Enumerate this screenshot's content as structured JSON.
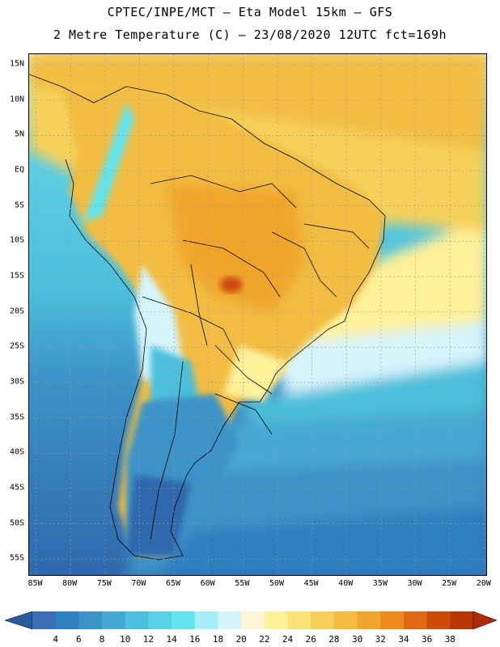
{
  "header": {
    "line1": "CPTEC/INPE/MCT –  Eta Model 15km – GFS",
    "line2": "2 Metre Temperature (C) – 23/08/2020 12UTC fct=169h"
  },
  "map": {
    "lat_labels": [
      "15N",
      "10N",
      "5N",
      "EQ",
      "5S",
      "10S",
      "15S",
      "20S",
      "25S",
      "30S",
      "35S",
      "40S",
      "45S",
      "50S",
      "55S"
    ],
    "lon_labels": [
      "85W",
      "80W",
      "75W",
      "70W",
      "65W",
      "60W",
      "55W",
      "50W",
      "45W",
      "40W",
      "35W",
      "30W",
      "25W",
      "20W"
    ],
    "lat_values": [
      15,
      10,
      5,
      0,
      -5,
      -10,
      -15,
      -20,
      -25,
      -30,
      -35,
      -40,
      -45,
      -50,
      -55
    ],
    "lon_values": [
      -85,
      -80,
      -75,
      -70,
      -65,
      -60,
      -55,
      -50,
      -45,
      -40,
      -35,
      -30,
      -25,
      -20
    ],
    "extent": {
      "lon_min": -86,
      "lon_max": -19.5,
      "lat_min": -57.5,
      "lat_max": 16.5
    }
  },
  "colorbar": {
    "labels": [
      "4",
      "6",
      "8",
      "10",
      "12",
      "14",
      "16",
      "18",
      "20",
      "22",
      "24",
      "26",
      "28",
      "30",
      "32",
      "34",
      "36",
      "38"
    ],
    "colors": [
      "#3a6fb5",
      "#2f7fbe",
      "#3c93c8",
      "#46a9d2",
      "#4cbfdc",
      "#58d2e6",
      "#62e4ef",
      "#a7eef8",
      "#d6f4fb",
      "#fff6d6",
      "#fff09a",
      "#fbe176",
      "#f6d05a",
      "#f2bd42",
      "#f0a52c",
      "#ec8a20",
      "#e06a14",
      "#cc4a0a",
      "#b83508"
    ],
    "under_color": "#2a5aa0",
    "over_color": "#b02a05"
  }
}
